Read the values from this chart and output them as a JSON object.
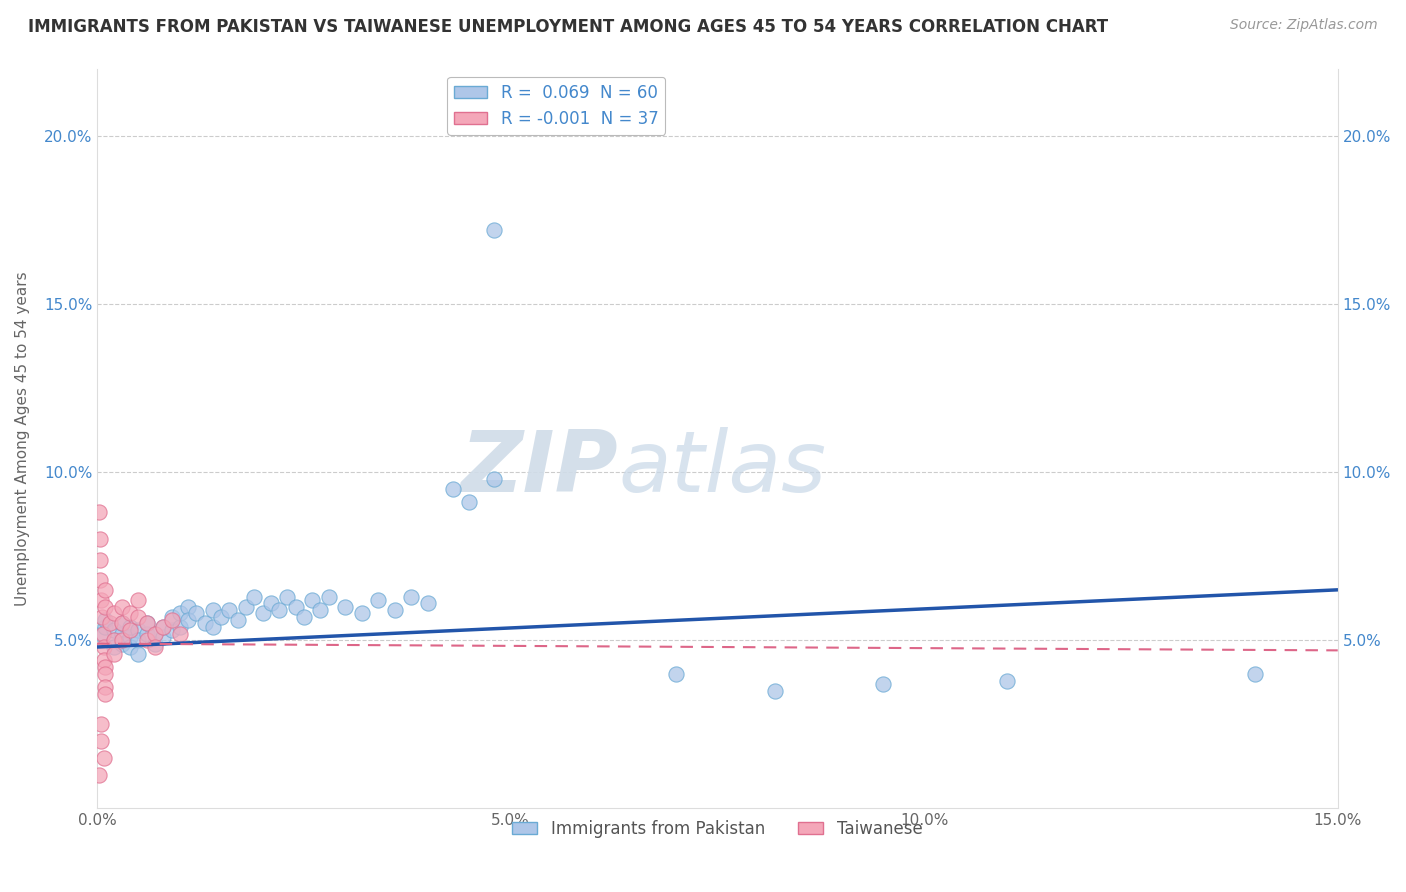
{
  "title": "IMMIGRANTS FROM PAKISTAN VS TAIWANESE UNEMPLOYMENT AMONG AGES 45 TO 54 YEARS CORRELATION CHART",
  "source": "Source: ZipAtlas.com",
  "ylabel": "Unemployment Among Ages 45 to 54 years",
  "xlim": [
    0.0,
    0.15
  ],
  "ylim": [
    0.0,
    0.22
  ],
  "xtick_labels": [
    "0.0%",
    "5.0%",
    "10.0%",
    "15.0%"
  ],
  "xtick_vals": [
    0.0,
    0.05,
    0.1,
    0.15
  ],
  "ytick_labels": [
    "5.0%",
    "10.0%",
    "15.0%",
    "20.0%"
  ],
  "ytick_vals": [
    0.05,
    0.1,
    0.15,
    0.2
  ],
  "pakistan_R": 0.069,
  "pakistan_N": 60,
  "taiwanese_R": -0.001,
  "taiwanese_N": 37,
  "pakistan_color": "#aec6e8",
  "pakistan_edge": "#6aaad4",
  "taiwanese_color": "#f4a7b9",
  "taiwanese_edge": "#e07090",
  "trend_pakistan_color": "#2255aa",
  "trend_taiwanese_color": "#dd6688",
  "watermark_zip": "ZIP",
  "watermark_atlas": "atlas",
  "pakistan_scatter": [
    [
      0.0005,
      0.052
    ],
    [
      0.001,
      0.054
    ],
    [
      0.001,
      0.056
    ],
    [
      0.002,
      0.05
    ],
    [
      0.002,
      0.053
    ],
    [
      0.002,
      0.048
    ],
    [
      0.003,
      0.052
    ],
    [
      0.003,
      0.055
    ],
    [
      0.003,
      0.049
    ],
    [
      0.004,
      0.051
    ],
    [
      0.004,
      0.054
    ],
    [
      0.004,
      0.048
    ],
    [
      0.005,
      0.053
    ],
    [
      0.005,
      0.05
    ],
    [
      0.005,
      0.046
    ],
    [
      0.006,
      0.052
    ],
    [
      0.006,
      0.055
    ],
    [
      0.007,
      0.049
    ],
    [
      0.007,
      0.052
    ],
    [
      0.008,
      0.051
    ],
    [
      0.008,
      0.054
    ],
    [
      0.009,
      0.053
    ],
    [
      0.009,
      0.057
    ],
    [
      0.01,
      0.054
    ],
    [
      0.01,
      0.058
    ],
    [
      0.011,
      0.06
    ],
    [
      0.011,
      0.056
    ],
    [
      0.012,
      0.058
    ],
    [
      0.013,
      0.055
    ],
    [
      0.014,
      0.059
    ],
    [
      0.014,
      0.054
    ],
    [
      0.015,
      0.057
    ],
    [
      0.016,
      0.059
    ],
    [
      0.017,
      0.056
    ],
    [
      0.018,
      0.06
    ],
    [
      0.019,
      0.063
    ],
    [
      0.02,
      0.058
    ],
    [
      0.021,
      0.061
    ],
    [
      0.022,
      0.059
    ],
    [
      0.023,
      0.063
    ],
    [
      0.024,
      0.06
    ],
    [
      0.025,
      0.057
    ],
    [
      0.026,
      0.062
    ],
    [
      0.027,
      0.059
    ],
    [
      0.028,
      0.063
    ],
    [
      0.03,
      0.06
    ],
    [
      0.032,
      0.058
    ],
    [
      0.034,
      0.062
    ],
    [
      0.036,
      0.059
    ],
    [
      0.038,
      0.063
    ],
    [
      0.04,
      0.061
    ],
    [
      0.043,
      0.095
    ],
    [
      0.045,
      0.091
    ],
    [
      0.048,
      0.098
    ],
    [
      0.048,
      0.172
    ],
    [
      0.07,
      0.04
    ],
    [
      0.082,
      0.035
    ],
    [
      0.095,
      0.037
    ],
    [
      0.11,
      0.038
    ],
    [
      0.14,
      0.04
    ]
  ],
  "taiwanese_scatter": [
    [
      0.0002,
      0.088
    ],
    [
      0.0003,
      0.08
    ],
    [
      0.0004,
      0.074
    ],
    [
      0.0004,
      0.068
    ],
    [
      0.0005,
      0.062
    ],
    [
      0.0006,
      0.057
    ],
    [
      0.0007,
      0.052
    ],
    [
      0.0008,
      0.048
    ],
    [
      0.0008,
      0.044
    ],
    [
      0.001,
      0.042
    ],
    [
      0.001,
      0.04
    ],
    [
      0.001,
      0.036
    ],
    [
      0.001,
      0.034
    ],
    [
      0.001,
      0.06
    ],
    [
      0.001,
      0.065
    ],
    [
      0.0015,
      0.055
    ],
    [
      0.002,
      0.058
    ],
    [
      0.002,
      0.05
    ],
    [
      0.002,
      0.046
    ],
    [
      0.003,
      0.06
    ],
    [
      0.003,
      0.055
    ],
    [
      0.003,
      0.05
    ],
    [
      0.004,
      0.058
    ],
    [
      0.004,
      0.053
    ],
    [
      0.005,
      0.062
    ],
    [
      0.005,
      0.057
    ],
    [
      0.006,
      0.055
    ],
    [
      0.006,
      0.05
    ],
    [
      0.007,
      0.052
    ],
    [
      0.007,
      0.048
    ],
    [
      0.008,
      0.054
    ],
    [
      0.009,
      0.056
    ],
    [
      0.01,
      0.052
    ],
    [
      0.0005,
      0.025
    ],
    [
      0.0005,
      0.02
    ],
    [
      0.0008,
      0.015
    ],
    [
      0.0002,
      0.01
    ]
  ]
}
